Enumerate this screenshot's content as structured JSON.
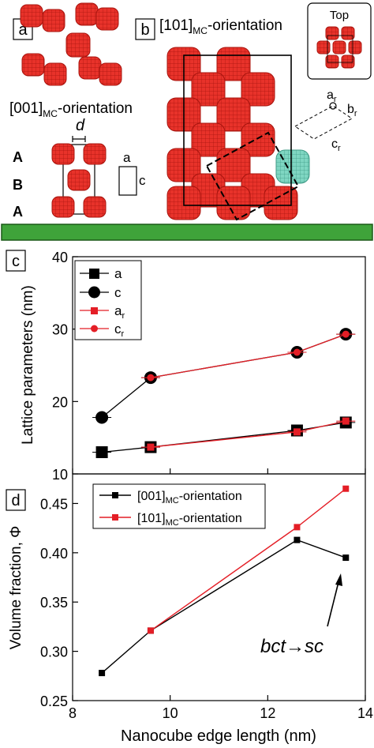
{
  "panel_a": {
    "letter": "a",
    "orientation_main": "[001]",
    "orientation_sub": "MC",
    "orientation_suffix": "-orientation",
    "spacing_label": "d",
    "layer_labels": [
      "A",
      "B",
      "A"
    ],
    "cell_a_label": "a",
    "cell_c_label": "c"
  },
  "panel_b": {
    "letter": "b",
    "orientation_main": "[101]",
    "orientation_sub": "MC",
    "orientation_suffix": "-orientation",
    "top_label": "Top",
    "ar_main": "a",
    "ar_sub": "r",
    "br_main": "b",
    "br_sub": "r",
    "cr_main": "c",
    "cr_sub": "r"
  },
  "colors": {
    "cube_red": "#e8322a",
    "cube_cyan": "#7fd6c2",
    "substrate_green": "#3fa33a",
    "series_black": "#000000",
    "series_red": "#e41e26"
  },
  "chart_data": [
    {
      "type": "line",
      "panel": "c",
      "xlim": [
        8,
        14
      ],
      "ylim": [
        10,
        40
      ],
      "ylabel": "Lattice parameters (nm)",
      "yticks": [
        10,
        20,
        30,
        40
      ],
      "legend_placement": "top-left",
      "series": [
        {
          "name": "a",
          "marker": "square",
          "color": "#000000",
          "x": [
            8.6,
            9.6,
            12.6,
            13.6
          ],
          "y": [
            13.0,
            13.7,
            16.0,
            17.1
          ]
        },
        {
          "name": "c",
          "marker": "circle",
          "color": "#000000",
          "x": [
            8.6,
            9.6,
            12.6,
            13.6
          ],
          "y": [
            17.8,
            23.3,
            26.8,
            29.3
          ]
        },
        {
          "name_main": "a",
          "name_sub": "r",
          "marker": "square",
          "color": "#e41e26",
          "x": [
            9.6,
            12.6,
            13.6
          ],
          "y": [
            13.7,
            15.8,
            17.3
          ]
        },
        {
          "name_main": "c",
          "name_sub": "r",
          "marker": "circle",
          "color": "#e41e26",
          "x": [
            9.6,
            12.6,
            13.6
          ],
          "y": [
            23.3,
            26.8,
            29.3
          ]
        }
      ]
    },
    {
      "type": "line",
      "panel": "d",
      "xlim": [
        8,
        14
      ],
      "ylim": [
        0.25,
        0.48
      ],
      "xlabel": "Nanocube edge length (nm)",
      "ylabel": "Volume fraction, Φ",
      "xticks": [
        "8",
        "10",
        "12",
        "14"
      ],
      "yticks": [
        "0.25",
        "0.30",
        "0.35",
        "0.40",
        "0.45"
      ],
      "legend_placement": "top-left",
      "annotation": "bct→sc",
      "series": [
        {
          "name_main": "[001]",
          "name_sub": "MC",
          "name_suffix": "-orientation",
          "color": "#000000",
          "x": [
            8.6,
            9.6,
            12.6,
            13.6
          ],
          "y": [
            0.278,
            0.321,
            0.413,
            0.395
          ]
        },
        {
          "name_main": "[101]",
          "name_sub": "MC",
          "name_suffix": "-orientation",
          "color": "#e41e26",
          "x": [
            9.6,
            12.6,
            13.6
          ],
          "y": [
            0.321,
            0.426,
            0.465
          ]
        }
      ]
    }
  ]
}
